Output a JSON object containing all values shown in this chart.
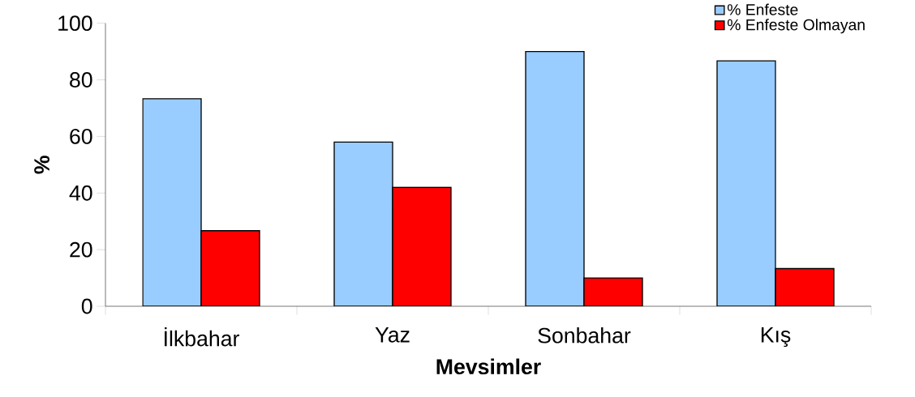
{
  "chart_data": {
    "type": "bar",
    "xlabel": "Mevsimler",
    "ylabel": "%",
    "categories": [
      "İlkbahar",
      "Yaz",
      "Sonbahar",
      "Kış"
    ],
    "series": [
      {
        "name": "% Enfeste",
        "color": "#99ccff",
        "values": [
          73.3,
          58,
          90,
          86.7
        ]
      },
      {
        "name": "% Enfeste Olmayan",
        "color": "#ff0000",
        "values": [
          26.7,
          42,
          10,
          13.3
        ]
      }
    ],
    "ylim": [
      0,
      100
    ],
    "yticks": [
      0,
      20,
      40,
      60,
      80,
      100
    ],
    "grid": false,
    "legend": "top right"
  }
}
